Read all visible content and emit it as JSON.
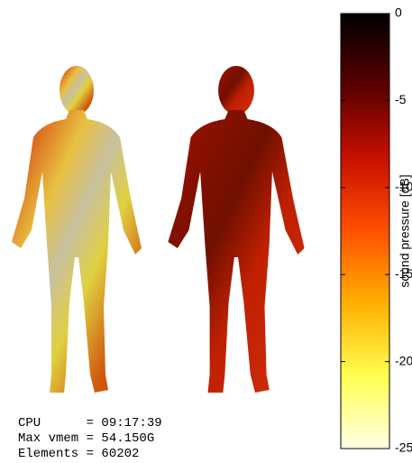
{
  "chart_data": {
    "type": "colorbar",
    "colorbar": {
      "label": "sound pressure [dB]",
      "lim": [
        -25,
        0
      ],
      "ticks": [
        -25,
        -20,
        -15,
        -10,
        -5,
        0
      ],
      "colormap": [
        "#000000",
        "#5a0000",
        "#c81000",
        "#ff5000",
        "#ffb000",
        "#ffff50",
        "#ffffe6"
      ]
    },
    "annotations": [
      "CPU      = 09:17:39",
      "Max vmem = 54.150G",
      "Elements = 60202"
    ]
  }
}
